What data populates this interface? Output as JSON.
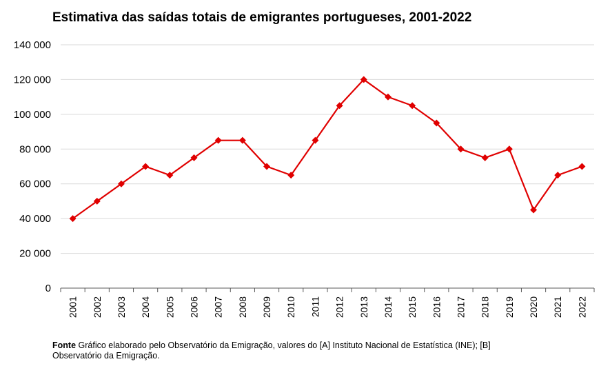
{
  "chart_data": {
    "type": "line",
    "title": "Estimativa das saídas totais de emigrantes portugueses, 2001-2022",
    "xlabel": "",
    "ylabel": "",
    "categories": [
      "2001",
      "2002",
      "2003",
      "2004",
      "2005",
      "2006",
      "2007",
      "2008",
      "2009",
      "2010",
      "2011",
      "2012",
      "2013",
      "2014",
      "2015",
      "2016",
      "2017",
      "2018",
      "2019",
      "2020",
      "2021",
      "2022"
    ],
    "series": [
      {
        "values": [
          40000,
          50000,
          60000,
          70000,
          65000,
          75000,
          85000,
          85000,
          70000,
          65000,
          85000,
          105000,
          120000,
          110000,
          105000,
          95000,
          80000,
          75000,
          80000,
          45000,
          65000,
          70000
        ]
      }
    ],
    "ylim": [
      0,
      140000
    ],
    "yticks": [
      0,
      20000,
      40000,
      60000,
      80000,
      100000,
      120000,
      140000
    ],
    "ytick_labels": [
      "0",
      "20 000",
      "40 000",
      "60 000",
      "80 000",
      "100 000",
      "120 000",
      "140 000"
    ],
    "grid": true,
    "legend": "none",
    "colors": {
      "line": "#e00000",
      "grid": "#d9d9d9",
      "axis": "#595959"
    }
  },
  "footer": {
    "label": "Fonte",
    "text": " Gráfico elaborado pelo Observatório da Emigração, valores do [A] Instituto Nacional de Estatística (INE); [B] Observatório da Emigração."
  }
}
